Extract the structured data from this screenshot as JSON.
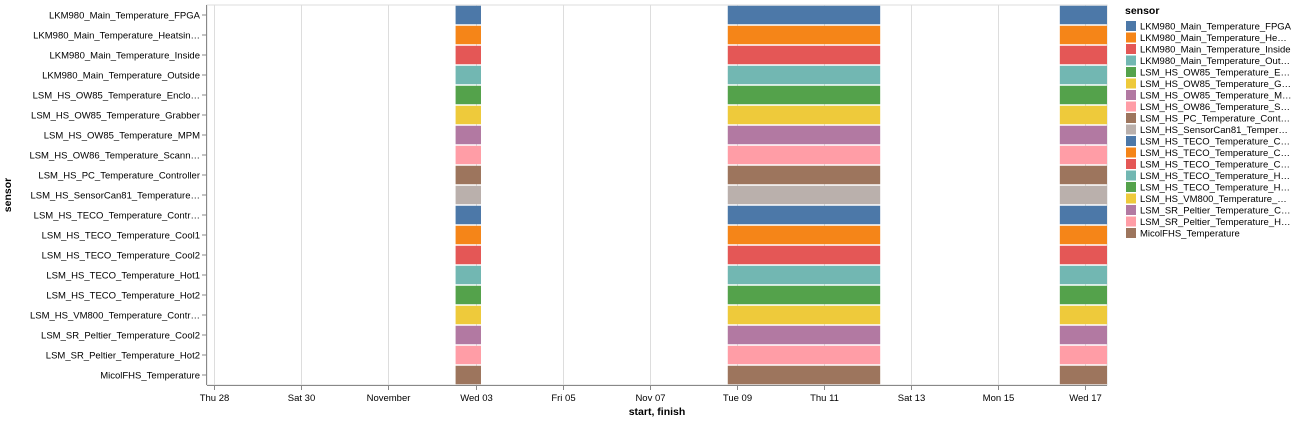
{
  "chart_data": {
    "type": "gantt",
    "xlabel": "start, finish",
    "ylabel": "sensor",
    "x_axis_type": "time",
    "xlim": [
      "2021-10-27T20:00",
      "2021-11-17T12:00"
    ],
    "x_ticks": [
      {
        "date": "2021-10-28",
        "label": "Thu 28"
      },
      {
        "date": "2021-10-30",
        "label": "Sat 30"
      },
      {
        "date": "2021-11-01",
        "label": "November"
      },
      {
        "date": "2021-11-03",
        "label": "Wed 03"
      },
      {
        "date": "2021-11-05",
        "label": "Fri 05"
      },
      {
        "date": "2021-11-07",
        "label": "Nov 07"
      },
      {
        "date": "2021-11-09",
        "label": "Tue 09"
      },
      {
        "date": "2021-11-11",
        "label": "Thu 11"
      },
      {
        "date": "2021-11-13",
        "label": "Sat 13"
      },
      {
        "date": "2021-11-15",
        "label": "Mon 15"
      },
      {
        "date": "2021-11-17",
        "label": "Wed 17"
      }
    ],
    "grid": true,
    "legend_position": "right",
    "legend_title": "sensor",
    "sensors": [
      {
        "name": "LKM980_Main_Temperature_FPGA",
        "axis_label": "LKM980_Main_Temperature_FPGA",
        "legend_label": "LKM980_Main_Temperature_FPGA",
        "color": "#4c78a8"
      },
      {
        "name": "LKM980_Main_Temperature_Heatsink",
        "axis_label": "LKM980_Main_Temperature_Heatsin…",
        "legend_label": "LKM980_Main_Temperature_He…",
        "color": "#f58518"
      },
      {
        "name": "LKM980_Main_Temperature_Inside",
        "axis_label": "LKM980_Main_Temperature_Inside",
        "legend_label": "LKM980_Main_Temperature_Inside",
        "color": "#e45756"
      },
      {
        "name": "LKM980_Main_Temperature_Outside",
        "axis_label": "LKM980_Main_Temperature_Outside",
        "legend_label": "LKM980_Main_Temperature_Out…",
        "color": "#72b7b2"
      },
      {
        "name": "LSM_HS_OW85_Temperature_Enclosure",
        "axis_label": "LSM_HS_OW85_Temperature_Enclo…",
        "legend_label": "LSM_HS_OW85_Temperature_E…",
        "color": "#54a24b"
      },
      {
        "name": "LSM_HS_OW85_Temperature_Grabber",
        "axis_label": "LSM_HS_OW85_Temperature_Grabber",
        "legend_label": "LSM_HS_OW85_Temperature_G…",
        "color": "#eeca3b"
      },
      {
        "name": "LSM_HS_OW85_Temperature_MPM",
        "axis_label": "LSM_HS_OW85_Temperature_MPM",
        "legend_label": "LSM_HS_OW85_Temperature_M…",
        "color": "#b279a2"
      },
      {
        "name": "LSM_HS_OW86_Temperature_Scanner",
        "axis_label": "LSM_HS_OW86_Temperature_Scann…",
        "legend_label": "LSM_HS_OW86_Temperature_S…",
        "color": "#ff9da6"
      },
      {
        "name": "LSM_HS_PC_Temperature_Controller",
        "axis_label": "LSM_HS_PC_Temperature_Controller",
        "legend_label": "LSM_HS_PC_Temperature_Cont…",
        "color": "#9d755d"
      },
      {
        "name": "LSM_HS_SensorCan81_Temperature",
        "axis_label": "LSM_HS_SensorCan81_Temperature…",
        "legend_label": "LSM_HS_SensorCan81_Temper…",
        "color": "#bab0ac"
      },
      {
        "name": "LSM_HS_TECO_Temperature_Controller",
        "axis_label": "LSM_HS_TECO_Temperature_Contr…",
        "legend_label": "LSM_HS_TECO_Temperature_C…",
        "color": "#4c78a8"
      },
      {
        "name": "LSM_HS_TECO_Temperature_Cool1",
        "axis_label": "LSM_HS_TECO_Temperature_Cool1",
        "legend_label": "LSM_HS_TECO_Temperature_C…",
        "color": "#f58518"
      },
      {
        "name": "LSM_HS_TECO_Temperature_Cool2",
        "axis_label": "LSM_HS_TECO_Temperature_Cool2",
        "legend_label": "LSM_HS_TECO_Temperature_C…",
        "color": "#e45756"
      },
      {
        "name": "LSM_HS_TECO_Temperature_Hot1",
        "axis_label": "LSM_HS_TECO_Temperature_Hot1",
        "legend_label": "LSM_HS_TECO_Temperature_H…",
        "color": "#72b7b2"
      },
      {
        "name": "LSM_HS_TECO_Temperature_Hot2",
        "axis_label": "LSM_HS_TECO_Temperature_Hot2",
        "legend_label": "LSM_HS_TECO_Temperature_H…",
        "color": "#54a24b"
      },
      {
        "name": "LSM_HS_VM800_Temperature_Controller",
        "axis_label": "LSM_HS_VM800_Temperature_Contr…",
        "legend_label": "LSM_HS_VM800_Temperature_…",
        "color": "#eeca3b"
      },
      {
        "name": "LSM_SR_Peltier_Temperature_Cool2",
        "axis_label": "LSM_SR_Peltier_Temperature_Cool2",
        "legend_label": "LSM_SR_Peltier_Temperature_C…",
        "color": "#b279a2"
      },
      {
        "name": "LSM_SR_Peltier_Temperature_Hot2",
        "axis_label": "LSM_SR_Peltier_Temperature_Hot2",
        "legend_label": "LSM_SR_Peltier_Temperature_H…",
        "color": "#ff9da6"
      },
      {
        "name": "MicolFHS_Temperature",
        "axis_label": "MicolFHS_Temperature",
        "legend_label": "MicolFHS_Temperature",
        "color": "#9d755d"
      }
    ],
    "intervals": [
      {
        "start": "2021-11-02T13:00",
        "finish": "2021-11-03T03:00"
      },
      {
        "start": "2021-11-08T19:00",
        "finish": "2021-11-12T07:00"
      },
      {
        "start": "2021-11-16T10:00",
        "finish": "2021-11-17T12:00"
      }
    ]
  }
}
